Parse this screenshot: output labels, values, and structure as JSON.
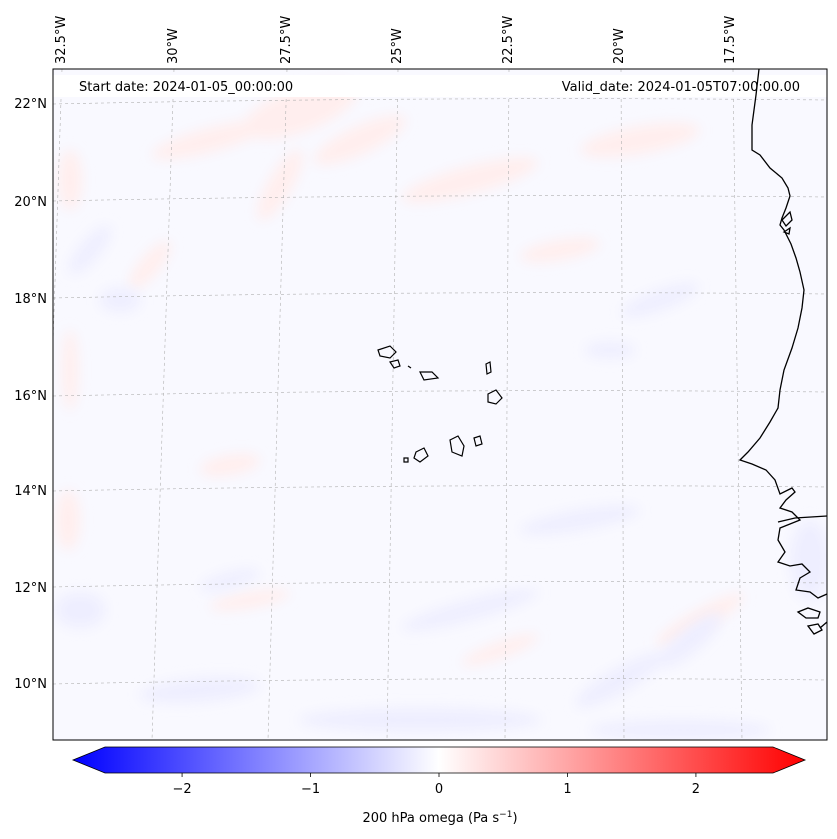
{
  "map": {
    "start_date": "Start date: 2024-01-05_00:00:00",
    "valid_date": "Valid_date: 2024-01-05T07:00:00.00",
    "lon_labels": [
      "32.5°W",
      "30°W",
      "27.5°W",
      "25°W",
      "22.5°W",
      "20°W",
      "17.5°W"
    ],
    "lat_labels": [
      "22°N",
      "20°N",
      "18°N",
      "16°N",
      "14°N",
      "12°N",
      "10°N"
    ],
    "colors": {
      "background": "#f9f9ff",
      "positive": "#ffeeee",
      "negative": "#eeeeff",
      "coastline": "#000000",
      "grid": "#b0b0b0"
    }
  },
  "colorbar": {
    "title": "200 hPa omega (Pa s",
    "title_sup": "−1",
    "title_end": ")",
    "range": [
      -2.6,
      2.6
    ],
    "ticks": [
      {
        "value": -2,
        "label": "−2"
      },
      {
        "value": -1,
        "label": "−1"
      },
      {
        "value": 0,
        "label": "0"
      },
      {
        "value": 1,
        "label": "1"
      },
      {
        "value": 2,
        "label": "2"
      }
    ],
    "colors": {
      "min": "#0000ff",
      "mid": "#ffffff",
      "max": "#ff0000"
    }
  }
}
